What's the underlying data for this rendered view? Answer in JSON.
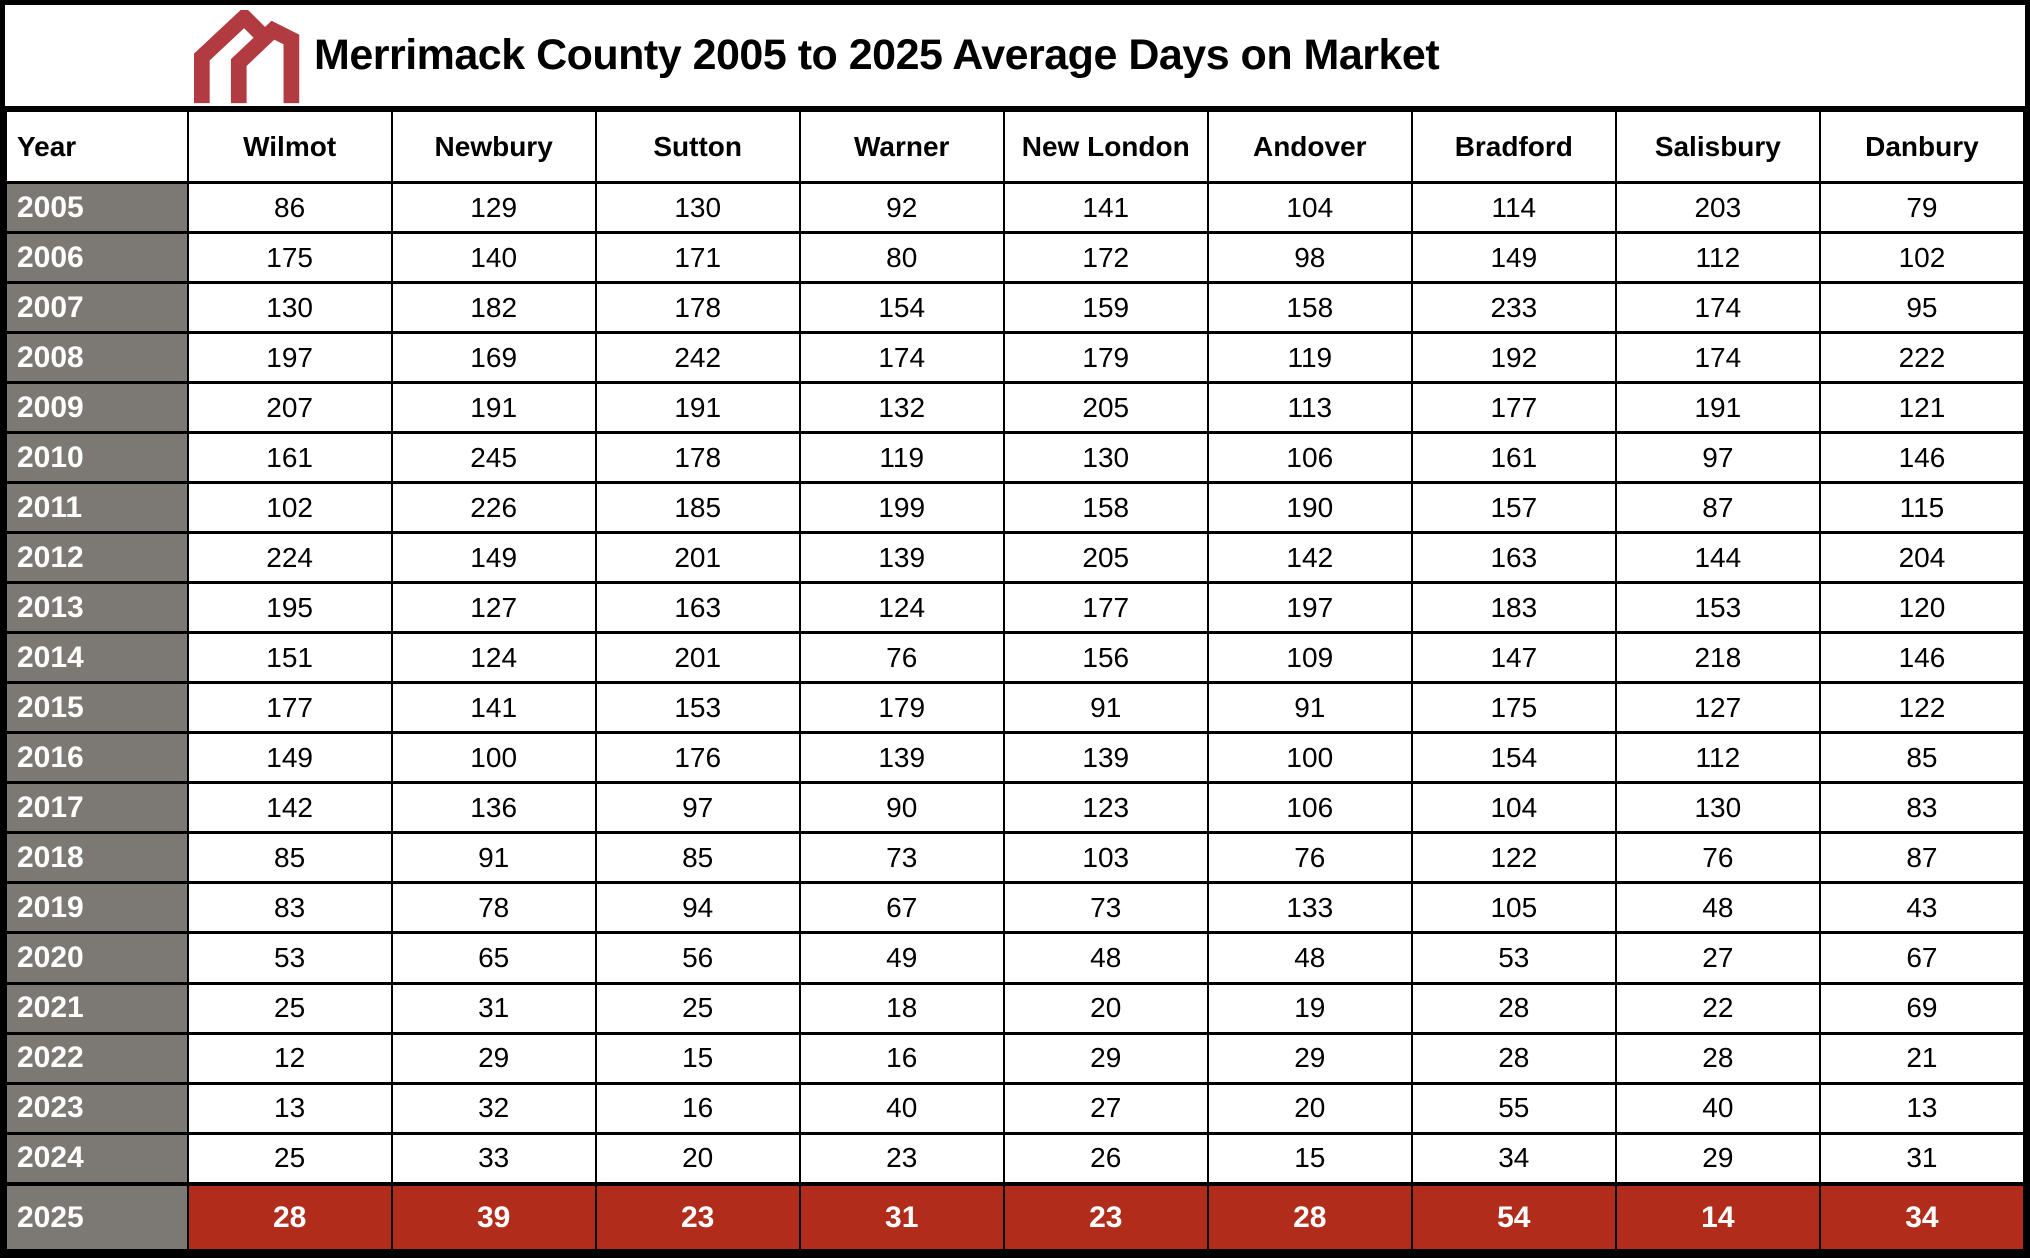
{
  "title": "Merrimack County 2005 to 2025 Average Days on Market",
  "logo": {
    "name": "double-roofline-house-logo",
    "color": "#B23B42"
  },
  "colors": {
    "year_column_bg": "#7C7974",
    "year_column_text": "#FFFFFF",
    "highlight_row_bg": "#B12C1B",
    "highlight_row_text": "#FFFFFF",
    "grid": "#000000",
    "body_bg": "#FFFFFF",
    "text": "#000000"
  },
  "chart_data": {
    "type": "table",
    "title": "Merrimack County 2005 to 2025 Average Days on Market",
    "unit": "average days on market",
    "columns": [
      "Year",
      "Wilmot",
      "Newbury",
      "Sutton",
      "Warner",
      "New London",
      "Andover",
      "Bradford",
      "Salisbury",
      "Danbury"
    ],
    "rows": [
      {
        "year": "2005",
        "values": [
          86,
          129,
          130,
          92,
          141,
          104,
          114,
          203,
          79
        ],
        "highlight": false
      },
      {
        "year": "2006",
        "values": [
          175,
          140,
          171,
          80,
          172,
          98,
          149,
          112,
          102
        ],
        "highlight": false
      },
      {
        "year": "2007",
        "values": [
          130,
          182,
          178,
          154,
          159,
          158,
          233,
          174,
          95
        ],
        "highlight": false
      },
      {
        "year": "2008",
        "values": [
          197,
          169,
          242,
          174,
          179,
          119,
          192,
          174,
          222
        ],
        "highlight": false
      },
      {
        "year": "2009",
        "values": [
          207,
          191,
          191,
          132,
          205,
          113,
          177,
          191,
          121
        ],
        "highlight": false
      },
      {
        "year": "2010",
        "values": [
          161,
          245,
          178,
          119,
          130,
          106,
          161,
          97,
          146
        ],
        "highlight": false
      },
      {
        "year": "2011",
        "values": [
          102,
          226,
          185,
          199,
          158,
          190,
          157,
          87,
          115
        ],
        "highlight": false
      },
      {
        "year": "2012",
        "values": [
          224,
          149,
          201,
          139,
          205,
          142,
          163,
          144,
          204
        ],
        "highlight": false
      },
      {
        "year": "2013",
        "values": [
          195,
          127,
          163,
          124,
          177,
          197,
          183,
          153,
          120
        ],
        "highlight": false
      },
      {
        "year": "2014",
        "values": [
          151,
          124,
          201,
          76,
          156,
          109,
          147,
          218,
          146
        ],
        "highlight": false
      },
      {
        "year": "2015",
        "values": [
          177,
          141,
          153,
          179,
          91,
          91,
          175,
          127,
          122
        ],
        "highlight": false
      },
      {
        "year": "2016",
        "values": [
          149,
          100,
          176,
          139,
          139,
          100,
          154,
          112,
          85
        ],
        "highlight": false
      },
      {
        "year": "2017",
        "values": [
          142,
          136,
          97,
          90,
          123,
          106,
          104,
          130,
          83
        ],
        "highlight": false
      },
      {
        "year": "2018",
        "values": [
          85,
          91,
          85,
          73,
          103,
          76,
          122,
          76,
          87
        ],
        "highlight": false
      },
      {
        "year": "2019",
        "values": [
          83,
          78,
          94,
          67,
          73,
          133,
          105,
          48,
          43
        ],
        "highlight": false
      },
      {
        "year": "2020",
        "values": [
          53,
          65,
          56,
          49,
          48,
          48,
          53,
          27,
          67
        ],
        "highlight": false
      },
      {
        "year": "2021",
        "values": [
          25,
          31,
          25,
          18,
          20,
          19,
          28,
          22,
          69
        ],
        "highlight": false
      },
      {
        "year": "2022",
        "values": [
          12,
          29,
          15,
          16,
          29,
          29,
          28,
          28,
          21
        ],
        "highlight": false
      },
      {
        "year": "2023",
        "values": [
          13,
          32,
          16,
          40,
          27,
          20,
          55,
          40,
          13
        ],
        "highlight": false
      },
      {
        "year": "2024",
        "values": [
          25,
          33,
          20,
          23,
          26,
          15,
          34,
          29,
          31
        ],
        "highlight": false
      },
      {
        "year": "2025",
        "values": [
          28,
          39,
          23,
          31,
          23,
          28,
          54,
          14,
          34
        ],
        "highlight": true
      }
    ]
  }
}
